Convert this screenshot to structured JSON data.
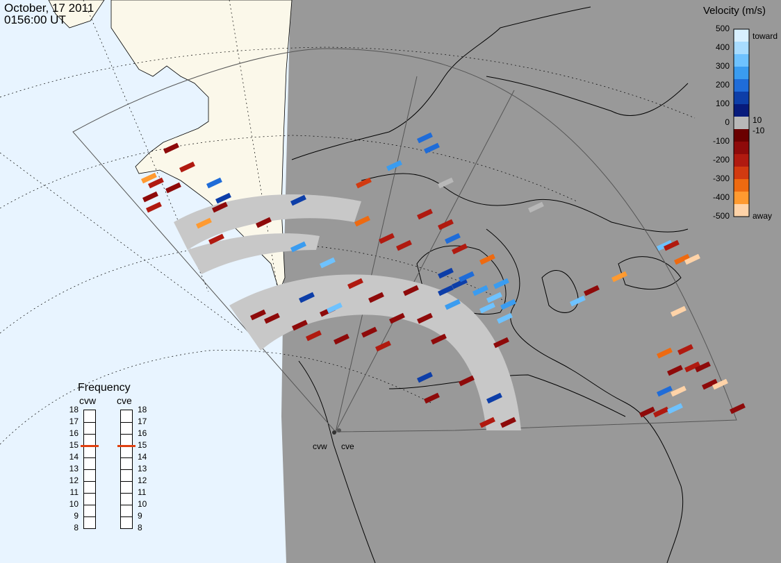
{
  "header": {
    "date": "October, 17 2011",
    "time": "0156:00 UT"
  },
  "velocity_legend": {
    "title": "Velocity (m/s)",
    "ticks": [
      "500",
      "400",
      "300",
      "200",
      "100",
      "0",
      "-100",
      "-200",
      "-300",
      "-400",
      "-500"
    ],
    "toward_label": "toward",
    "away_label": "away",
    "pos_threshold": "10",
    "neg_threshold": "-10",
    "colors": [
      "#d8f0ff",
      "#a8dcff",
      "#6ec2ff",
      "#3a9cf0",
      "#1f6cd8",
      "#0d3ea8",
      "#071b7c",
      "#b8b8b8",
      "#6a0000",
      "#8e0a0a",
      "#b01a10",
      "#d23a10",
      "#ee6a10",
      "#ff9a30",
      "#ffd3a8"
    ]
  },
  "frequency_legend": {
    "title": "Frequency",
    "radar_west": "cvw",
    "radar_east": "cve",
    "ticks": [
      "18",
      "17",
      "16",
      "15",
      "14",
      "13",
      "12",
      "11",
      "10",
      "9",
      "8"
    ],
    "west_value_mhz": 15,
    "east_value_mhz": 15,
    "indicator_color": "#e04010"
  },
  "radars": {
    "west_label": "cvw",
    "east_label": "cve"
  },
  "map_colors": {
    "ocean": "#e8f4ff",
    "land": "#fbf8ea",
    "night": "#999999",
    "scatter": "#c8c8c8"
  }
}
